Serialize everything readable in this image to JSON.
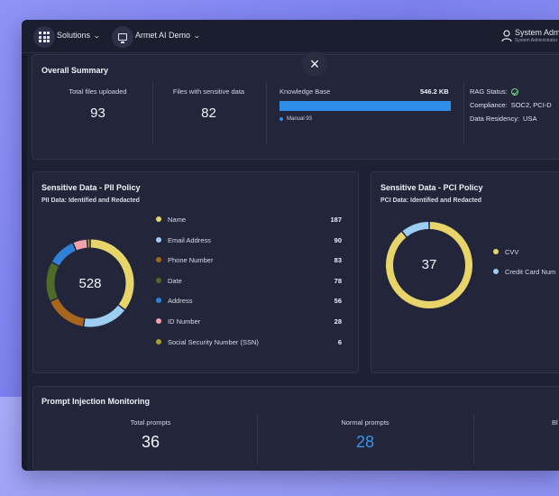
{
  "topbar": {
    "solutions_label": "Solutions",
    "workspace_label": "Armet AI Demo",
    "user_name": "System Admin",
    "user_role": "System Administrator"
  },
  "overall_summary": {
    "title": "Overall Summary",
    "total_files_label": "Total files uploaded",
    "total_files_value": "93",
    "sensitive_files_label": "Files with sensitive data",
    "sensitive_files_value": "82",
    "knowledge_base_label": "Knowledge Base",
    "knowledge_base_size": "546.2 KB",
    "knowledge_base_fill": 1.0,
    "knowledge_base_legend": "Manual 93",
    "rag_status_label": "RAG Status:",
    "compliance_label": "Compliance:",
    "compliance_value": "SOC2, PCI-D",
    "residency_label": "Data Residency:",
    "residency_value": "USA"
  },
  "pii": {
    "title": "Sensitive Data - PII Policy",
    "subtitle": "PII Data: Identified and Redacted",
    "total": "528",
    "items": [
      {
        "label": "Name",
        "value": "187",
        "color": "#e8d56a"
      },
      {
        "label": "Email Address",
        "value": "90",
        "color": "#9ccdf2"
      },
      {
        "label": "Phone Number",
        "value": "83",
        "color": "#a8661c"
      },
      {
        "label": "Date",
        "value": "78",
        "color": "#4d6b29"
      },
      {
        "label": "Address",
        "value": "56",
        "color": "#2f80d6"
      },
      {
        "label": "ID Number",
        "value": "28",
        "color": "#f2a3aa"
      },
      {
        "label": "Social Security Number (SSN)",
        "value": "6",
        "color": "#a7a02a"
      }
    ]
  },
  "pci": {
    "title": "Sensitive Data - PCI Policy",
    "subtitle": "PCI Data: Identified and Redacted",
    "total": "37",
    "items": [
      {
        "label": "CVV",
        "value": "33",
        "color": "#e8d56a"
      },
      {
        "label": "Credit Card Num",
        "value": "4",
        "color": "#9ccdf2"
      }
    ]
  },
  "prompt_monitoring": {
    "title": "Prompt Injection Monitoring",
    "total_label": "Total prompts",
    "total_value": "36",
    "normal_label": "Normal prompts",
    "normal_value": "28",
    "blocked_label_partial": "Bl",
    "colors": {
      "total": "#f2f3f8",
      "normal": "#3b93ea"
    }
  }
}
